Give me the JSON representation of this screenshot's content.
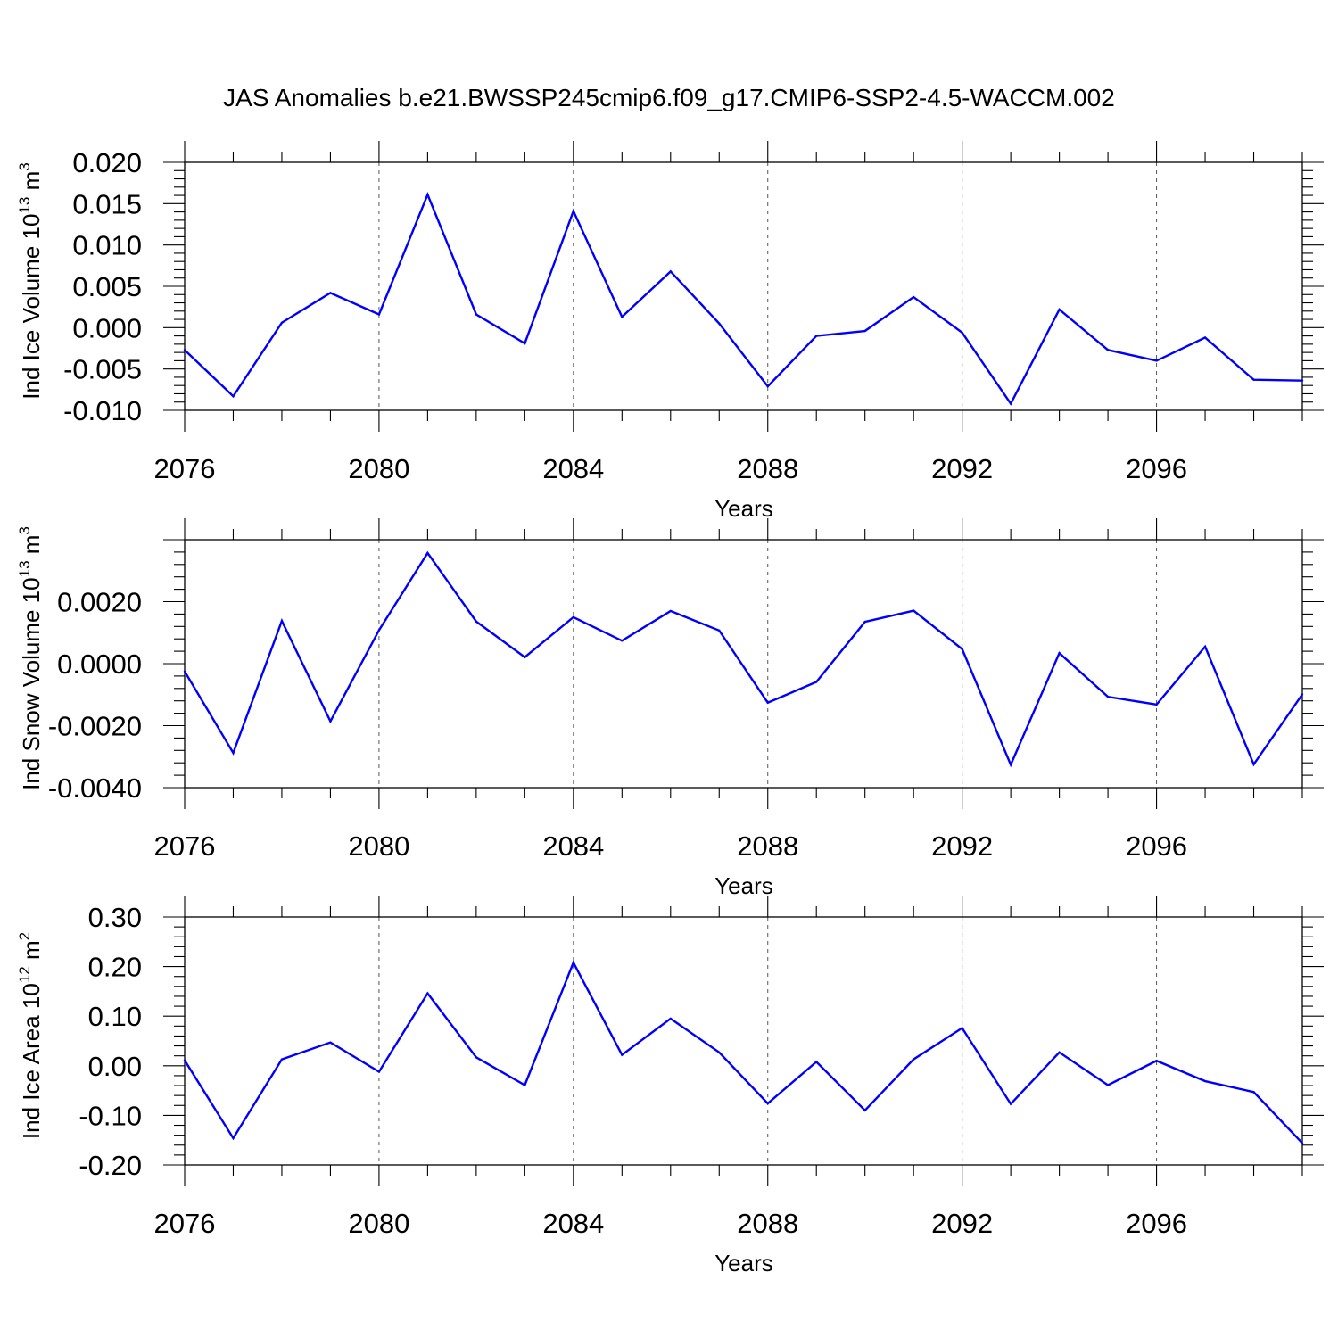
{
  "figure_title": "JAS Anomalies b.e21.BWSSP245cmip6.f09_g17.CMIP6-SSP2-4.5-WACCM.002",
  "chart_data": [
    {
      "type": "line",
      "title": "",
      "xlabel": "Years",
      "ylabel_main": "Ind Ice Volume 10",
      "ylabel_exp": "13",
      "ylabel_unit": " m",
      "ylabel_unit_exp": "3",
      "xlim": [
        2076,
        2099
      ],
      "ylim": [
        -0.01,
        0.02
      ],
      "x_ticks": [
        2076,
        2080,
        2084,
        2088,
        2092,
        2096
      ],
      "x_tick_labels": [
        "2076",
        "2080",
        "2084",
        "2088",
        "2092",
        "2096"
      ],
      "y_ticks": [
        -0.01,
        -0.005,
        0.0,
        0.005,
        0.01,
        0.015,
        0.02
      ],
      "y_tick_labels": [
        "-0.010",
        "-0.005",
        "0.000",
        "0.005",
        "0.010",
        "0.015",
        "0.020"
      ],
      "grid": "dashed vertical at major x ticks",
      "series": [
        {
          "name": "Ind Ice Volume",
          "color": "#0000ff",
          "x": [
            2076,
            2077,
            2078,
            2079,
            2080,
            2081,
            2082,
            2083,
            2084,
            2085,
            2086,
            2087,
            2088,
            2089,
            2090,
            2091,
            2092,
            2093,
            2094,
            2095,
            2096,
            2097,
            2098,
            2099
          ],
          "values": [
            -0.0027,
            -0.0083,
            0.0006,
            0.0042,
            0.0016,
            0.0161,
            0.0016,
            -0.0019,
            0.0141,
            0.0013,
            0.0068,
            0.0005,
            -0.0071,
            -0.001,
            -0.0004,
            0.0037,
            -0.0006,
            -0.0092,
            0.0022,
            -0.0027,
            -0.004,
            -0.0012,
            -0.0063,
            -0.0064
          ]
        }
      ]
    },
    {
      "type": "line",
      "title": "",
      "xlabel": "Years",
      "ylabel_main": "Ind Snow Volume 10",
      "ylabel_exp": "13",
      "ylabel_unit": " m",
      "ylabel_unit_exp": "3",
      "xlim": [
        2076,
        2099
      ],
      "ylim": [
        -0.004,
        0.004
      ],
      "x_ticks": [
        2076,
        2080,
        2084,
        2088,
        2092,
        2096
      ],
      "x_tick_labels": [
        "2076",
        "2080",
        "2084",
        "2088",
        "2092",
        "2096"
      ],
      "y_ticks": [
        -0.004,
        -0.002,
        0.0,
        0.002
      ],
      "y_tick_labels": [
        "-0.0040",
        "-0.0020",
        "0.0000",
        "0.0020"
      ],
      "grid": "dashed vertical at major x ticks",
      "series": [
        {
          "name": "Ind Snow Volume",
          "color": "#0000ff",
          "x": [
            2076,
            2077,
            2078,
            2079,
            2080,
            2081,
            2082,
            2083,
            2084,
            2085,
            2086,
            2087,
            2088,
            2089,
            2090,
            2091,
            2092,
            2093,
            2094,
            2095,
            2096,
            2097,
            2098,
            2099
          ],
          "values": [
            -0.00025,
            -0.00288,
            0.00138,
            -0.00186,
            0.00108,
            0.00357,
            0.00136,
            0.00021,
            0.0015,
            0.00074,
            0.0017,
            0.00107,
            -0.00126,
            -0.00059,
            0.00135,
            0.00171,
            0.00047,
            -0.00326,
            0.00034,
            -0.00107,
            -0.00132,
            0.00055,
            -0.00325,
            -0.00099
          ]
        }
      ]
    },
    {
      "type": "line",
      "title": "",
      "xlabel": "Years",
      "ylabel_main": "Ind Ice Area 10",
      "ylabel_exp": "12",
      "ylabel_unit": " m",
      "ylabel_unit_exp": "2",
      "xlim": [
        2076,
        2099
      ],
      "ylim": [
        -0.2,
        0.3
      ],
      "x_ticks": [
        2076,
        2080,
        2084,
        2088,
        2092,
        2096
      ],
      "x_tick_labels": [
        "2076",
        "2080",
        "2084",
        "2088",
        "2092",
        "2096"
      ],
      "y_ticks": [
        -0.2,
        -0.1,
        0.0,
        0.1,
        0.2,
        0.3
      ],
      "y_tick_labels": [
        "-0.20",
        "-0.10",
        "0.00",
        "0.10",
        "0.20",
        "0.30"
      ],
      "grid": "dashed vertical at major x ticks",
      "series": [
        {
          "name": "Ind Ice Area",
          "color": "#0000ff",
          "x": [
            2076,
            2077,
            2078,
            2079,
            2080,
            2081,
            2082,
            2083,
            2084,
            2085,
            2086,
            2087,
            2088,
            2089,
            2090,
            2091,
            2092,
            2093,
            2094,
            2095,
            2096,
            2097,
            2098,
            2099
          ],
          "values": [
            0.011,
            -0.146,
            0.013,
            0.047,
            -0.012,
            0.146,
            0.017,
            -0.039,
            0.208,
            0.022,
            0.095,
            0.027,
            -0.076,
            0.008,
            -0.09,
            0.013,
            0.076,
            -0.077,
            0.027,
            -0.039,
            0.01,
            -0.031,
            -0.053,
            -0.156
          ]
        }
      ]
    }
  ]
}
